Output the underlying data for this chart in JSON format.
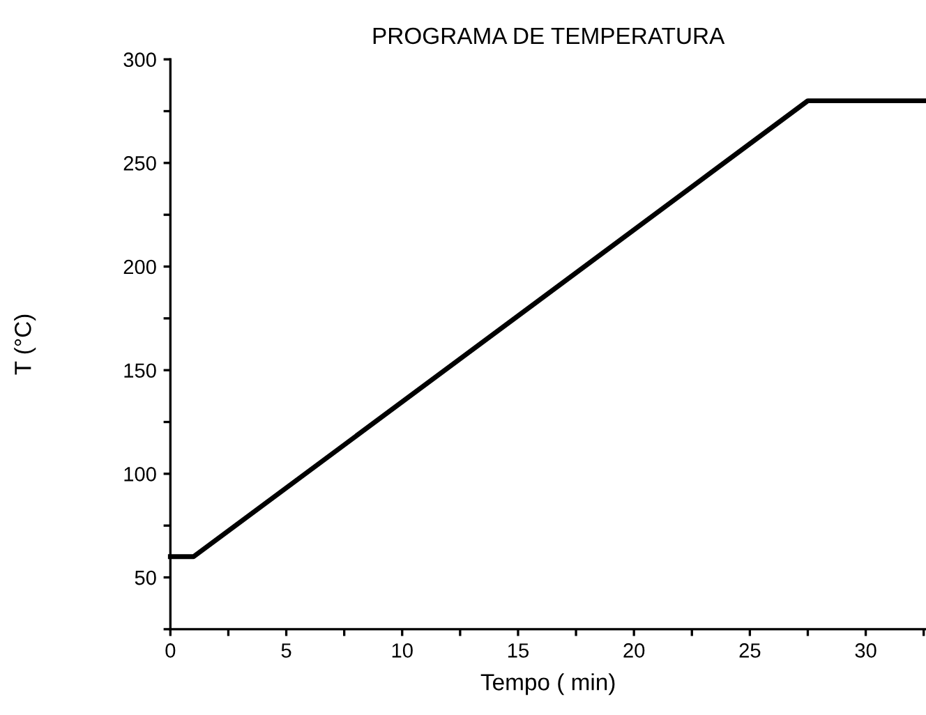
{
  "chart_data": {
    "type": "line",
    "title": "PROGRAMA DE TEMPERATURA",
    "xlabel": "Tempo ( min)",
    "ylabel": "T (°C)",
    "x": [
      0,
      1,
      27.5,
      32.6
    ],
    "series": [
      {
        "color": "#000000",
        "values": [
          60,
          60,
          280,
          280
        ]
      }
    ],
    "xlim": [
      0,
      32.6
    ],
    "ylim": [
      25,
      300
    ],
    "xticks": [
      0,
      {
        "value": 2.5,
        "label": null
      },
      5,
      {
        "value": 7.5,
        "label": null
      },
      10,
      {
        "value": 12.5,
        "label": null
      },
      15,
      {
        "value": 17.5,
        "label": null
      },
      20,
      {
        "value": 22.5,
        "label": null
      },
      25,
      {
        "value": 27.5,
        "label": null
      },
      30,
      {
        "value": 32.5,
        "label": null
      }
    ],
    "yticks": [
      {
        "value": 25,
        "label": null
      },
      50,
      {
        "value": 75,
        "label": null
      },
      100,
      {
        "value": 125,
        "label": null
      },
      150,
      {
        "value": 175,
        "label": null
      },
      200,
      {
        "value": 225,
        "label": null
      },
      250,
      {
        "value": 275,
        "label": null
      },
      300
    ],
    "grid": false,
    "legend": false,
    "marker": "none",
    "line_style": "solid"
  }
}
